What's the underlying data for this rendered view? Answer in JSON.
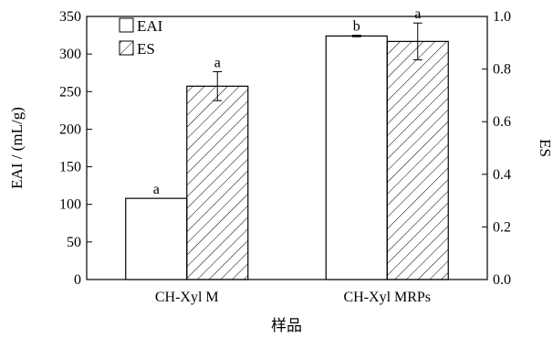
{
  "chart_data": {
    "type": "bar",
    "categories": [
      "CH-Xyl M",
      "CH-Xyl MRPs"
    ],
    "xlabel": "样品",
    "ylabel": "EAI / (mL/g)",
    "y2label": "ES",
    "ylim": [
      0,
      350
    ],
    "y2lim": [
      0.0,
      1.0
    ],
    "yticks": [
      0,
      50,
      100,
      150,
      200,
      250,
      300,
      350
    ],
    "y2ticks": [
      "0.0",
      "0.2",
      "0.4",
      "0.6",
      "0.8",
      "1.0"
    ],
    "grid": false,
    "legend_position": "top-left",
    "series": [
      {
        "name": "EAI",
        "axis": "left",
        "fill": "open",
        "values": [
          108,
          324
        ],
        "errors": [
          0,
          1
        ],
        "labels": [
          "a",
          "b"
        ]
      },
      {
        "name": "ES",
        "axis": "right",
        "fill": "hatched",
        "values": [
          0.735,
          0.905
        ],
        "errors": [
          0.055,
          0.07
        ],
        "labels": [
          "a",
          "a"
        ]
      }
    ]
  }
}
